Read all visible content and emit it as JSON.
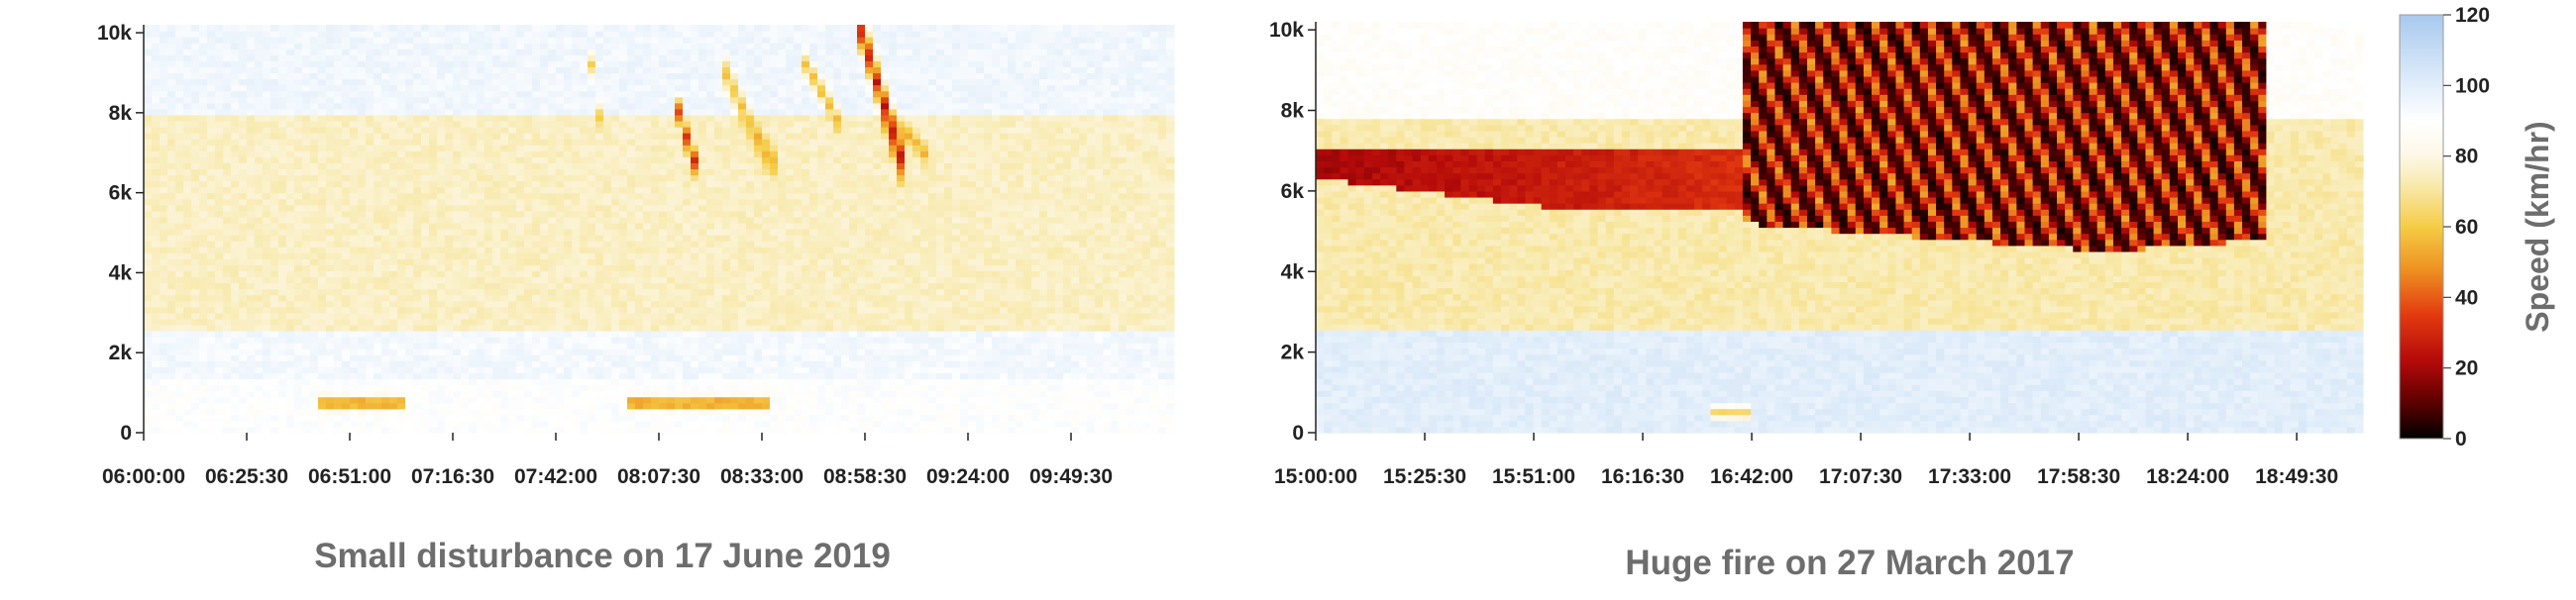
{
  "chart_data": [
    {
      "type": "heatmap",
      "title": "Small disturbance on 17 June 2019",
      "xlabel": "",
      "ylabel": "",
      "x_ticks": [
        "06:00:00",
        "06:25:30",
        "06:51:00",
        "07:16:30",
        "07:42:00",
        "08:07:30",
        "08:33:00",
        "08:58:30",
        "09:24:00",
        "09:49:30"
      ],
      "x_range": [
        "06:00:00",
        "10:15:00"
      ],
      "y_ticks": [
        "0",
        "2k",
        "4k",
        "6k",
        "8k",
        "10k"
      ],
      "y_range": [
        0,
        10200
      ],
      "value": "speed (km/hr)",
      "bands": [
        {
          "y": [
            8000,
            10200
          ],
          "speed": 95
        },
        {
          "y": [
            2600,
            8000
          ],
          "speed": 75
        },
        {
          "y": [
            1300,
            2600
          ],
          "speed": 94
        },
        {
          "y": [
            0,
            1300
          ],
          "speed": 90
        }
      ],
      "features": [
        {
          "kind": "low-speed streak",
          "t0": "08:57:00",
          "t1": "09:08:00",
          "y0": 10200,
          "y1": 6700,
          "min_speed": 25
        },
        {
          "kind": "low-speed streak",
          "t0": "08:12:00",
          "t1": "08:16:00",
          "y0": 8200,
          "y1": 6800,
          "min_speed": 30
        },
        {
          "kind": "slowdown",
          "t0": "08:24:00",
          "t1": "08:35:00",
          "y0": 9000,
          "y1": 6800,
          "min_speed": 55
        },
        {
          "kind": "slowdown",
          "t0": "08:44:00",
          "t1": "08:52:00",
          "y0": 9200,
          "y1": 7800,
          "min_speed": 55
        },
        {
          "kind": "slowdown",
          "t0": "09:08:00",
          "t1": "09:14:00",
          "y0": 7600,
          "y1": 6900,
          "min_speed": 55
        },
        {
          "kind": "slowdown",
          "t0": "07:51:00",
          "t1": "07:53:00",
          "y0": 9200,
          "y1": 7800,
          "min_speed": 60
        },
        {
          "kind": "slowdown",
          "t0": "06:45:00",
          "t1": "07:04:00",
          "y0": 750,
          "y1": 750,
          "min_speed": 40
        },
        {
          "kind": "slowdown",
          "t0": "08:00:00",
          "t1": "08:33:00",
          "y0": 750,
          "y1": 750,
          "min_speed": 40
        }
      ]
    },
    {
      "type": "heatmap",
      "title": "Huge fire on 27 March 2017",
      "xlabel": "",
      "ylabel": "",
      "x_ticks": [
        "15:00:00",
        "15:25:30",
        "15:51:00",
        "16:16:30",
        "16:42:00",
        "17:07:30",
        "17:33:00",
        "17:58:30",
        "18:24:00",
        "18:49:30"
      ],
      "x_range": [
        "15:00:00",
        "19:05:00"
      ],
      "y_ticks": [
        "0",
        "2k",
        "4k",
        "6k",
        "8k",
        "10k"
      ],
      "y_range": [
        0,
        10200
      ],
      "value": "speed (km/hr)",
      "bands": [
        {
          "y": [
            7800,
            10200
          ],
          "speed": 88
        },
        {
          "y": [
            2600,
            7800
          ],
          "speed": 72
        },
        {
          "y": [
            0,
            2600
          ],
          "speed": 100
        }
      ],
      "features": [
        {
          "kind": "congestion front",
          "t0": "15:00:00",
          "t1": "16:40:00",
          "y_top": 7000,
          "y_bottom": 5500,
          "min_speed": 20
        },
        {
          "kind": "congestion",
          "t0": "16:40:00",
          "t1": "18:42:00",
          "y_top": 10200,
          "y_bottom": 4500,
          "min_speed": 5
        },
        {
          "kind": "slowdown",
          "t0": "16:33:00",
          "t1": "16:40:00",
          "y0": 500,
          "y1": 500,
          "min_speed": 60
        }
      ]
    }
  ],
  "colorbar": {
    "title": "Speed (km/hr)",
    "ticks": [
      "0",
      "20",
      "40",
      "60",
      "80",
      "100",
      "120"
    ],
    "range": [
      0,
      120
    ],
    "stops": [
      {
        "v": 0,
        "color": "#000000"
      },
      {
        "v": 10,
        "color": "#5a0000"
      },
      {
        "v": 22,
        "color": "#b40a0a"
      },
      {
        "v": 35,
        "color": "#e33a10"
      },
      {
        "v": 48,
        "color": "#ee9222"
      },
      {
        "v": 60,
        "color": "#f5cc45"
      },
      {
        "v": 72,
        "color": "#f8eaae"
      },
      {
        "v": 80,
        "color": "#fdf7e6"
      },
      {
        "v": 90,
        "color": "#ffffff"
      },
      {
        "v": 100,
        "color": "#e2eefa"
      },
      {
        "v": 120,
        "color": "#a8c9ee"
      }
    ]
  }
}
